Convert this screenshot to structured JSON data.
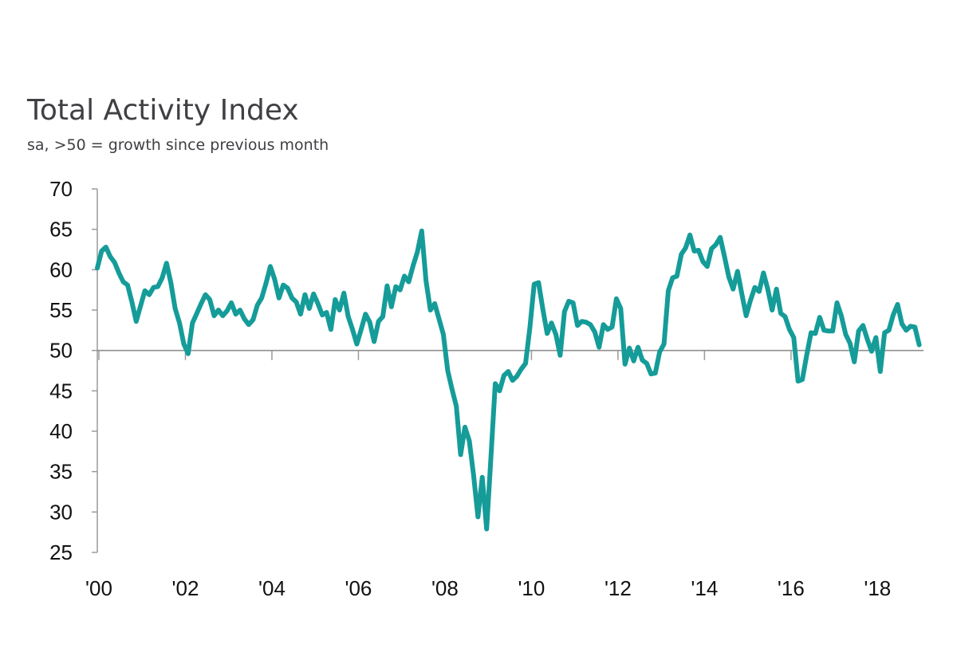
{
  "chart_data": {
    "type": "line",
    "title": "Total Activity Index",
    "subtitle": "sa, >50 = growth since previous month",
    "xlabel": "",
    "ylabel": "",
    "xlim": [
      2000.0,
      2019.1
    ],
    "ylim": [
      25,
      70
    ],
    "yticks": [
      70,
      65,
      60,
      55,
      50,
      45,
      40,
      35,
      30,
      25
    ],
    "xticks": [
      {
        "value": 2000,
        "label": "'00"
      },
      {
        "value": 2002,
        "label": "'02"
      },
      {
        "value": 2004,
        "label": "'04"
      },
      {
        "value": 2006,
        "label": "'06"
      },
      {
        "value": 2008,
        "label": "'08"
      },
      {
        "value": 2010,
        "label": "'10"
      },
      {
        "value": 2012,
        "label": "'12"
      },
      {
        "value": 2014,
        "label": "'14"
      },
      {
        "value": 2016,
        "label": "'16"
      },
      {
        "value": 2018,
        "label": "'18"
      }
    ],
    "reference_line": 50,
    "grid": false,
    "line_color": "#159c99",
    "series": [
      {
        "name": "",
        "x": [
          2000.0,
          2000.1,
          2000.2,
          2000.3,
          2000.4,
          2000.5,
          2000.6,
          2000.7,
          2000.8,
          2000.9,
          2001.0,
          2001.1,
          2001.2,
          2001.3,
          2001.4,
          2001.5,
          2001.6,
          2001.7,
          2001.8,
          2001.9,
          2002.0,
          2002.1,
          2002.2,
          2002.3,
          2002.4,
          2002.5,
          2002.6,
          2002.7,
          2002.8,
          2002.9,
          2003.0,
          2003.1,
          2003.2,
          2003.3,
          2003.4,
          2003.5,
          2003.6,
          2003.7,
          2003.8,
          2003.9,
          2004.0,
          2004.1,
          2004.2,
          2004.3,
          2004.4,
          2004.5,
          2004.6,
          2004.7,
          2004.8,
          2004.9,
          2005.0,
          2005.1,
          2005.2,
          2005.3,
          2005.4,
          2005.5,
          2005.6,
          2005.7,
          2005.8,
          2005.9,
          2006.0,
          2006.1,
          2006.2,
          2006.3,
          2006.4,
          2006.5,
          2006.6,
          2006.7,
          2006.8,
          2006.9,
          2007.0,
          2007.1,
          2007.2,
          2007.3,
          2007.4,
          2007.5,
          2007.6,
          2007.7,
          2007.8,
          2007.9,
          2008.0,
          2008.1,
          2008.2,
          2008.3,
          2008.4,
          2008.5,
          2008.6,
          2008.7,
          2008.8,
          2008.9,
          2009.0,
          2009.1,
          2009.2,
          2009.3,
          2009.4,
          2009.5,
          2009.6,
          2009.7,
          2009.8,
          2009.9,
          2010.0,
          2010.1,
          2010.2,
          2010.3,
          2010.4,
          2010.5,
          2010.6,
          2010.7,
          2010.8,
          2010.9,
          2011.0,
          2011.1,
          2011.2,
          2011.3,
          2011.4,
          2011.5,
          2011.6,
          2011.7,
          2011.8,
          2011.9,
          2012.0,
          2012.1,
          2012.2,
          2012.3,
          2012.4,
          2012.5,
          2012.6,
          2012.7,
          2012.8,
          2012.9,
          2013.0,
          2013.1,
          2013.2,
          2013.3,
          2013.4,
          2013.5,
          2013.6,
          2013.7,
          2013.8,
          2013.9,
          2014.0,
          2014.1,
          2014.2,
          2014.3,
          2014.4,
          2014.5,
          2014.6,
          2014.7,
          2014.8,
          2014.9,
          2015.0,
          2015.1,
          2015.2,
          2015.3,
          2015.4,
          2015.5,
          2015.6,
          2015.7,
          2015.8,
          2015.9,
          2016.0,
          2016.1,
          2016.2,
          2016.3,
          2016.4,
          2016.5,
          2016.6,
          2016.7,
          2016.8,
          2016.9,
          2017.0,
          2017.1,
          2017.2,
          2017.3,
          2017.4,
          2017.5,
          2017.6,
          2017.7,
          2017.8,
          2017.9,
          2018.0,
          2018.1,
          2018.2,
          2018.3,
          2018.4,
          2018.5,
          2018.6,
          2018.7,
          2018.8,
          2018.9,
          2019.0
        ],
        "values": [
          60.2,
          62.3,
          62.8,
          61.6,
          60.9,
          59.6,
          58.5,
          58.1,
          56.0,
          53.6,
          55.5,
          57.4,
          56.9,
          57.8,
          57.9,
          59.0,
          60.8,
          58.4,
          55.2,
          53.4,
          50.8,
          49.6,
          53.4,
          54.6,
          55.8,
          56.9,
          56.3,
          54.3,
          55.0,
          54.3,
          54.9,
          55.9,
          54.5,
          55.0,
          53.9,
          53.2,
          53.8,
          55.6,
          56.5,
          58.3,
          60.4,
          58.8,
          56.5,
          58.1,
          57.7,
          56.5,
          56.0,
          54.5,
          56.9,
          55.2,
          57.0,
          55.8,
          54.4,
          54.7,
          52.6,
          56.3,
          55.0,
          57.1,
          54.2,
          52.6,
          50.8,
          52.6,
          54.5,
          53.5,
          51.1,
          53.6,
          54.2,
          58.0,
          55.4,
          57.9,
          57.5,
          59.2,
          58.5,
          60.5,
          62.2,
          64.8,
          58.6,
          55.0,
          55.8,
          53.9,
          52.0,
          47.5,
          45.2,
          43.1,
          37.1,
          40.5,
          38.8,
          34.5,
          29.4,
          34.3,
          27.9,
          36.8,
          45.9,
          45.0,
          46.9,
          47.4,
          46.3,
          46.8,
          47.7,
          48.4,
          52.8,
          58.2,
          58.4,
          55.1,
          52.1,
          53.4,
          52.0,
          49.4,
          54.8,
          56.1,
          55.9,
          53.1,
          53.6,
          53.5,
          53.2,
          52.3,
          50.4,
          53.2,
          52.6,
          52.9,
          56.4,
          55.2,
          48.3,
          50.3,
          48.7,
          50.4,
          48.8,
          48.4,
          47.1,
          47.2,
          49.8,
          50.8,
          57.4,
          59.0,
          59.2,
          61.9,
          62.7,
          64.3,
          62.3,
          62.4,
          61.0,
          60.4,
          62.6,
          63.1,
          64.0,
          61.6,
          59.1,
          57.6,
          59.8,
          57.0,
          54.3,
          56.2,
          57.8,
          57.3,
          59.6,
          57.6,
          55.0,
          57.6,
          54.6,
          54.2,
          52.6,
          51.6,
          46.2,
          46.4,
          49.4,
          52.2,
          52.1,
          54.1,
          52.5,
          52.4,
          52.4,
          55.9,
          54.3,
          52.0,
          50.9,
          48.6,
          52.4,
          53.1,
          51.4,
          49.9,
          51.6,
          47.4,
          52.2,
          52.5,
          54.4,
          55.7,
          53.3,
          52.5,
          53.0,
          52.9,
          50.7
        ]
      }
    ]
  }
}
